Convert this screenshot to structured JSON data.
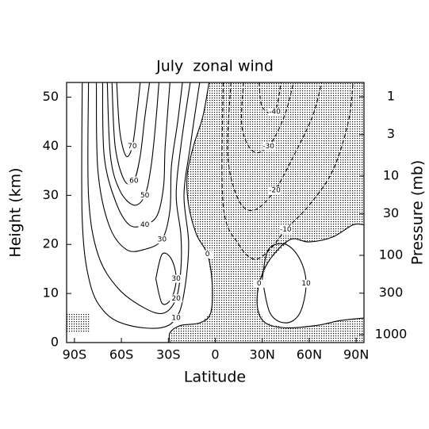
{
  "chart_data": {
    "type": "contour",
    "title": "July  zonal wind",
    "x_label": "Latitude",
    "y_label": "Height (km)",
    "y2_label": "Pressure (mb)",
    "xlim": [
      -95,
      95
    ],
    "ylim": [
      0,
      53
    ],
    "y2lim": [
      1259,
      0.66
    ],
    "y2log": true,
    "xticks": [
      {
        "value": -90,
        "label": "90S"
      },
      {
        "value": -60,
        "label": "60S"
      },
      {
        "value": -30,
        "label": "30S"
      },
      0,
      {
        "value": 30,
        "label": "30N"
      },
      {
        "value": 60,
        "label": "60N"
      },
      {
        "value": 90,
        "label": "90N"
      }
    ],
    "yticks": [
      0,
      10,
      20,
      30,
      40,
      50
    ],
    "y2ticks": [
      1,
      3,
      10,
      30,
      100,
      300,
      1000
    ],
    "shaded": [
      {
        "lat": [
          -4,
          -8,
          -14,
          -18,
          -17,
          -12,
          -5,
          -2,
          -3,
          -10,
          -22,
          -29,
          -29,
          95,
          95,
          80,
          65,
          45,
          32,
          27,
          28,
          35,
          48,
          60,
          75,
          88,
          95,
          95
        ],
        "height": [
          53,
          46,
          40,
          34,
          28,
          22,
          18,
          12,
          6,
          4,
          3.5,
          2,
          0,
          0,
          5,
          4.5,
          3.5,
          3,
          4,
          7,
          12,
          17,
          21,
          20.5,
          21.5,
          24,
          24,
          53
        ]
      },
      {
        "lat": [
          -95,
          -80,
          -80,
          -95
        ],
        "height": [
          6,
          6,
          2,
          2
        ]
      }
    ],
    "contours": [
      {
        "level": 0,
        "lat": [
          -4,
          -8,
          -14,
          -18,
          -17,
          -12,
          -5,
          -2,
          -3,
          -10,
          -22,
          -29,
          -29
        ],
        "height": [
          53,
          46,
          40,
          34,
          28,
          22,
          18,
          12,
          6,
          4,
          3.5,
          2,
          0
        ]
      },
      {
        "level": 0,
        "lat": [
          95,
          80,
          65,
          45,
          32,
          27,
          28,
          35,
          48,
          60,
          75,
          88,
          95
        ],
        "height": [
          5,
          4.5,
          3.5,
          3,
          4,
          7,
          12,
          17,
          21,
          20.5,
          21.5,
          24,
          24
        ]
      },
      {
        "level": 10,
        "lat": [
          -85,
          -85,
          -80,
          -70,
          -55,
          -35,
          -25,
          -20,
          -17,
          -20,
          -16,
          -10
        ],
        "height": [
          53,
          25,
          12,
          6,
          3.5,
          3,
          5,
          10,
          20,
          30,
          40,
          53
        ]
      },
      {
        "level": 20,
        "lat": [
          -81,
          -81,
          -75,
          -62,
          -45,
          -33,
          -25,
          -22,
          -22,
          -25,
          -22,
          -16
        ],
        "height": [
          53,
          30,
          18,
          11,
          7,
          6,
          9,
          15,
          22,
          30,
          40,
          53
        ]
      },
      {
        "level": 30,
        "lat": [
          -76,
          -75,
          -68,
          -57,
          -45,
          -34,
          -29,
          -28,
          -24,
          -21
        ],
        "height": [
          53,
          35,
          24,
          19,
          19,
          21,
          27,
          36,
          45,
          53
        ]
      },
      {
        "level": 30,
        "lat": [
          -38,
          -34,
          -28,
          -25,
          -28,
          -34,
          -38
        ],
        "height": [
          13,
          18,
          17,
          13,
          9,
          8,
          13
        ]
      },
      {
        "level": 40,
        "lat": [
          -72,
          -71,
          -64,
          -55,
          -45,
          -37,
          -33,
          -32,
          -29
        ],
        "height": [
          53,
          38,
          29,
          24,
          24,
          26,
          32,
          40,
          53
        ]
      },
      {
        "level": 50,
        "lat": [
          -69,
          -67,
          -61,
          -52,
          -45,
          -41,
          -38,
          -36
        ],
        "height": [
          53,
          38,
          31,
          28,
          30,
          36,
          45,
          53
        ]
      },
      {
        "level": 60,
        "lat": [
          -66,
          -64,
          -58,
          -52,
          -48,
          -45,
          -42
        ],
        "height": [
          53,
          40,
          33,
          33,
          38,
          46,
          53
        ]
      },
      {
        "level": 70,
        "lat": [
          -63,
          -61,
          -57,
          -53,
          -50,
          -48
        ],
        "height": [
          53,
          43,
          38,
          40,
          47,
          53
        ]
      },
      {
        "level": -10,
        "lat": [
          5,
          5,
          15,
          25,
          35,
          45,
          60,
          75,
          85,
          88
        ],
        "height": [
          53,
          28,
          20,
          17,
          19,
          23,
          28,
          35,
          45,
          53
        ]
      },
      {
        "level": -20,
        "lat": [
          10,
          8,
          15,
          25,
          38,
          50,
          62,
          68
        ],
        "height": [
          53,
          38,
          29,
          27,
          31,
          38,
          46,
          53
        ]
      },
      {
        "level": -30,
        "lat": [
          18,
          17,
          24,
          34,
          44,
          50
        ],
        "height": [
          53,
          44,
          39,
          40,
          46,
          53
        ]
      },
      {
        "level": -40,
        "lat": [
          28,
          30,
          38,
          42
        ],
        "height": [
          53,
          48,
          47,
          53
        ]
      },
      {
        "level": 10,
        "lat": [
          30,
          34,
          45,
          54,
          58,
          54,
          45,
          35,
          30
        ],
        "height": [
          13,
          19,
          20,
          17,
          12,
          6,
          4,
          6,
          13
        ]
      }
    ]
  }
}
